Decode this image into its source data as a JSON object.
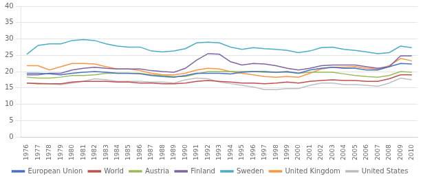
{
  "chart_data": {
    "type": "line",
    "x": [
      1976,
      1977,
      1978,
      1979,
      1980,
      1981,
      1982,
      1983,
      1984,
      1985,
      1986,
      1987,
      1988,
      1989,
      1990,
      1991,
      1992,
      1993,
      1994,
      1995,
      1996,
      1997,
      1998,
      1999,
      2000,
      2001,
      2002,
      2003,
      2004,
      2005,
      2006,
      2007,
      2008,
      2009,
      2010
    ],
    "series": [
      {
        "name": "European Union",
        "color": "#4472C4",
        "values": [
          19.5,
          19.5,
          19.3,
          19.0,
          19.5,
          19.8,
          20.0,
          19.8,
          19.5,
          19.5,
          19.3,
          18.8,
          18.5,
          18.3,
          18.8,
          19.5,
          19.5,
          19.5,
          19.3,
          19.8,
          20.0,
          20.0,
          19.8,
          20.0,
          19.5,
          20.5,
          21.0,
          21.3,
          21.0,
          21.0,
          20.5,
          20.5,
          21.5,
          22.5,
          22.3
        ]
      },
      {
        "name": "World",
        "color": "#C0504D",
        "values": [
          16.5,
          16.3,
          16.3,
          16.3,
          16.8,
          17.0,
          17.0,
          17.0,
          16.8,
          16.8,
          16.5,
          16.5,
          16.3,
          16.3,
          16.5,
          17.0,
          17.3,
          17.0,
          16.8,
          16.5,
          16.5,
          16.3,
          16.5,
          16.8,
          16.5,
          17.0,
          17.3,
          17.5,
          17.3,
          17.3,
          17.0,
          17.0,
          17.8,
          19.0,
          19.0
        ]
      },
      {
        "name": "Austria",
        "color": "#9BBB59",
        "values": [
          18.3,
          18.0,
          18.0,
          18.3,
          18.8,
          18.8,
          19.0,
          19.5,
          19.5,
          19.5,
          19.5,
          19.0,
          18.8,
          18.5,
          18.5,
          19.3,
          20.0,
          20.0,
          20.0,
          20.0,
          20.0,
          19.8,
          19.8,
          19.8,
          19.5,
          19.8,
          19.8,
          19.8,
          19.3,
          18.8,
          18.5,
          18.3,
          18.8,
          20.0,
          19.8
        ]
      },
      {
        "name": "Finland",
        "color": "#8064A2",
        "values": [
          19.0,
          19.0,
          19.5,
          19.5,
          20.5,
          21.0,
          21.3,
          21.0,
          20.8,
          20.8,
          20.8,
          20.3,
          20.0,
          19.8,
          21.0,
          23.5,
          25.5,
          25.3,
          23.0,
          22.0,
          22.5,
          22.3,
          21.8,
          21.0,
          20.5,
          21.0,
          21.8,
          22.0,
          22.0,
          22.0,
          21.5,
          21.0,
          21.5,
          24.8,
          24.8
        ]
      },
      {
        "name": "Sweden",
        "color": "#4BACC6",
        "values": [
          25.3,
          28.0,
          28.5,
          28.5,
          29.5,
          29.8,
          29.5,
          28.5,
          27.8,
          27.5,
          27.5,
          26.3,
          26.0,
          26.3,
          27.0,
          28.8,
          29.0,
          28.8,
          27.5,
          26.8,
          27.3,
          27.0,
          26.8,
          26.5,
          25.8,
          26.3,
          27.3,
          27.5,
          26.8,
          26.5,
          26.0,
          25.5,
          25.8,
          27.8,
          27.3
        ]
      },
      {
        "name": "United Kingdom",
        "color": "#F79646",
        "values": [
          21.8,
          21.8,
          20.5,
          21.5,
          22.5,
          22.5,
          22.3,
          21.5,
          20.8,
          20.8,
          20.3,
          19.5,
          19.0,
          19.0,
          19.5,
          20.5,
          21.0,
          20.8,
          20.0,
          19.5,
          19.0,
          18.5,
          18.3,
          18.5,
          18.3,
          19.5,
          20.8,
          21.3,
          21.3,
          21.5,
          21.0,
          20.8,
          21.8,
          24.0,
          23.3
        ]
      },
      {
        "name": "United States",
        "color": "#BFBFBF",
        "values": [
          16.5,
          16.5,
          16.3,
          16.0,
          16.5,
          17.0,
          17.8,
          17.5,
          17.0,
          17.0,
          17.0,
          16.8,
          16.8,
          16.5,
          17.5,
          18.0,
          17.8,
          16.8,
          16.3,
          15.8,
          15.3,
          14.5,
          14.5,
          14.8,
          14.8,
          15.8,
          16.5,
          16.5,
          16.0,
          16.0,
          15.8,
          15.5,
          16.5,
          18.0,
          17.5
        ]
      }
    ],
    "xlim": [
      1975.5,
      2010.5
    ],
    "xticks": [
      1976,
      1977,
      1978,
      1979,
      1980,
      1981,
      1982,
      1983,
      1984,
      1985,
      1986,
      1987,
      1988,
      1989,
      1990,
      1991,
      1992,
      1993,
      1994,
      1995,
      1996,
      1997,
      1998,
      1999,
      2000,
      2001,
      2002,
      2003,
      2004,
      2005,
      2006,
      2007,
      2008,
      2009,
      2010
    ],
    "ylim": [
      0,
      40
    ],
    "yticks": [
      0,
      5,
      10,
      15,
      20,
      25,
      30,
      35,
      40
    ],
    "grid": true,
    "legend": "bottom"
  }
}
